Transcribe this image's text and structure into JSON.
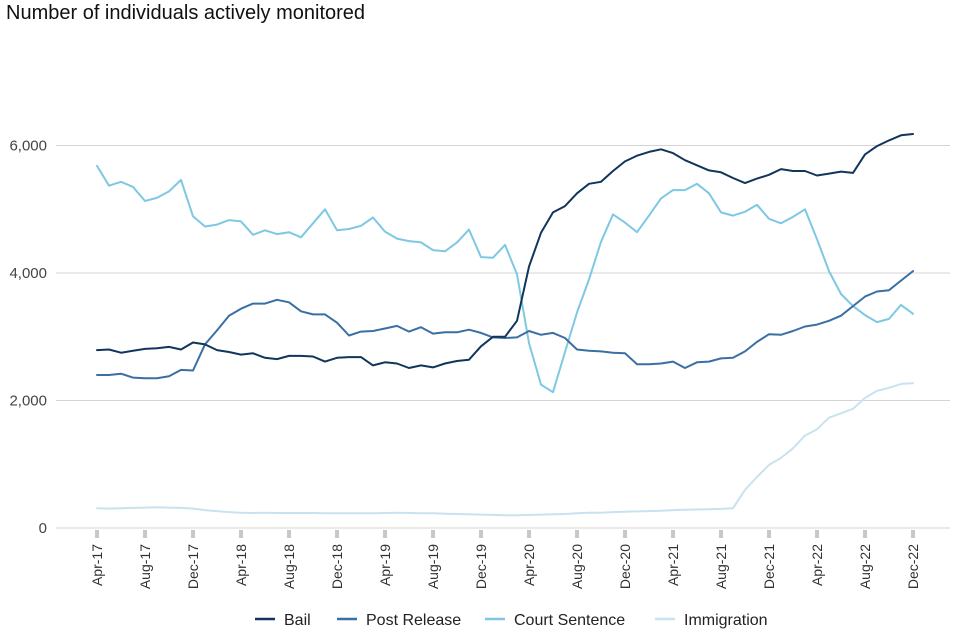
{
  "chart_data": {
    "type": "line",
    "title": "Number of individuals actively monitored",
    "xlabel": "",
    "ylabel": "",
    "ylim": [
      0,
      7000
    ],
    "yticks": [
      0,
      2000,
      4000,
      6000
    ],
    "ytick_labels": [
      "0",
      "2,000",
      "4,000",
      "6,000"
    ],
    "x": [
      "Apr-17",
      "May-17",
      "Jun-17",
      "Jul-17",
      "Aug-17",
      "Sep-17",
      "Oct-17",
      "Nov-17",
      "Dec-17",
      "Jan-18",
      "Feb-18",
      "Mar-18",
      "Apr-18",
      "May-18",
      "Jun-18",
      "Jul-18",
      "Aug-18",
      "Sep-18",
      "Oct-18",
      "Nov-18",
      "Dec-18",
      "Jan-19",
      "Feb-19",
      "Mar-19",
      "Apr-19",
      "May-19",
      "Jun-19",
      "Jul-19",
      "Aug-19",
      "Sep-19",
      "Oct-19",
      "Nov-19",
      "Dec-19",
      "Jan-20",
      "Feb-20",
      "Mar-20",
      "Apr-20",
      "May-20",
      "Jun-20",
      "Jul-20",
      "Aug-20",
      "Sep-20",
      "Oct-20",
      "Nov-20",
      "Dec-20",
      "Jan-21",
      "Feb-21",
      "Mar-21",
      "Apr-21",
      "May-21",
      "Jun-21",
      "Jul-21",
      "Aug-21",
      "Sep-21",
      "Oct-21",
      "Nov-21",
      "Dec-21",
      "Jan-22",
      "Feb-22",
      "Mar-22",
      "Apr-22",
      "May-22",
      "Jun-22",
      "Jul-22",
      "Aug-22",
      "Sep-22",
      "Oct-22",
      "Nov-22",
      "Dec-22"
    ],
    "x_tick_labels": [
      "Apr-17",
      "Aug-17",
      "Dec-17",
      "Apr-18",
      "Aug-18",
      "Dec-18",
      "Apr-19",
      "Aug-19",
      "Dec-19",
      "Apr-20",
      "Aug-20",
      "Dec-20",
      "Apr-21",
      "Aug-21",
      "Dec-21",
      "Apr-22",
      "Aug-22",
      "Dec-22"
    ],
    "grid": true,
    "legend_position": "bottom",
    "series": [
      {
        "name": "Bail",
        "color": "#12355b",
        "values": [
          2790,
          2800,
          2750,
          2780,
          2810,
          2820,
          2840,
          2800,
          2910,
          2880,
          2790,
          2760,
          2720,
          2740,
          2670,
          2650,
          2700,
          2700,
          2690,
          2610,
          2670,
          2680,
          2680,
          2550,
          2600,
          2580,
          2510,
          2550,
          2520,
          2580,
          2620,
          2640,
          2850,
          3000,
          3000,
          3250,
          4100,
          4630,
          4950,
          5050,
          5250,
          5400,
          5430,
          5600,
          5750,
          5840,
          5900,
          5940,
          5880,
          5770,
          5690,
          5610,
          5580,
          5490,
          5410,
          5480,
          5540,
          5630,
          5600,
          5600,
          5530,
          5560,
          5590,
          5570,
          5860,
          5990,
          6080,
          6160,
          6180
        ]
      },
      {
        "name": "Post Release",
        "color": "#3a6fa3",
        "values": [
          2400,
          2400,
          2420,
          2360,
          2350,
          2350,
          2380,
          2480,
          2470,
          2880,
          3100,
          3330,
          3440,
          3520,
          3520,
          3580,
          3540,
          3400,
          3350,
          3350,
          3220,
          3020,
          3080,
          3090,
          3130,
          3170,
          3080,
          3150,
          3050,
          3070,
          3070,
          3110,
          3060,
          2990,
          2980,
          2990,
          3090,
          3030,
          3060,
          2980,
          2800,
          2780,
          2770,
          2750,
          2740,
          2570,
          2570,
          2580,
          2610,
          2510,
          2600,
          2610,
          2660,
          2670,
          2770,
          2920,
          3040,
          3030,
          3090,
          3160,
          3190,
          3250,
          3330,
          3480,
          3630,
          3710,
          3730,
          3880,
          4030
        ]
      },
      {
        "name": "Court Sentence",
        "color": "#7ec8e3",
        "values": [
          5680,
          5370,
          5430,
          5350,
          5130,
          5180,
          5280,
          5460,
          4890,
          4730,
          4760,
          4830,
          4810,
          4600,
          4670,
          4610,
          4640,
          4560,
          4780,
          5000,
          4670,
          4690,
          4740,
          4870,
          4650,
          4540,
          4500,
          4480,
          4360,
          4340,
          4480,
          4680,
          4250,
          4240,
          4440,
          3980,
          2900,
          2250,
          2130,
          2760,
          3380,
          3900,
          4490,
          4920,
          4790,
          4640,
          4900,
          5170,
          5300,
          5300,
          5400,
          5250,
          4950,
          4900,
          4960,
          5070,
          4850,
          4780,
          4880,
          5000,
          4530,
          4030,
          3670,
          3480,
          3340,
          3230,
          3280,
          3500,
          3360
        ]
      },
      {
        "name": "Immigration",
        "color": "#c8e3ef",
        "values": [
          310,
          305,
          310,
          315,
          320,
          325,
          320,
          315,
          305,
          280,
          265,
          250,
          240,
          235,
          240,
          235,
          235,
          235,
          235,
          230,
          230,
          230,
          230,
          230,
          235,
          240,
          235,
          230,
          230,
          225,
          220,
          215,
          210,
          205,
          200,
          200,
          205,
          210,
          215,
          220,
          230,
          240,
          240,
          250,
          255,
          260,
          265,
          270,
          280,
          285,
          290,
          295,
          300,
          310,
          600,
          800,
          990,
          1100,
          1250,
          1450,
          1550,
          1730,
          1800,
          1870,
          2040,
          2150,
          2200,
          2260,
          2270
        ]
      }
    ]
  }
}
